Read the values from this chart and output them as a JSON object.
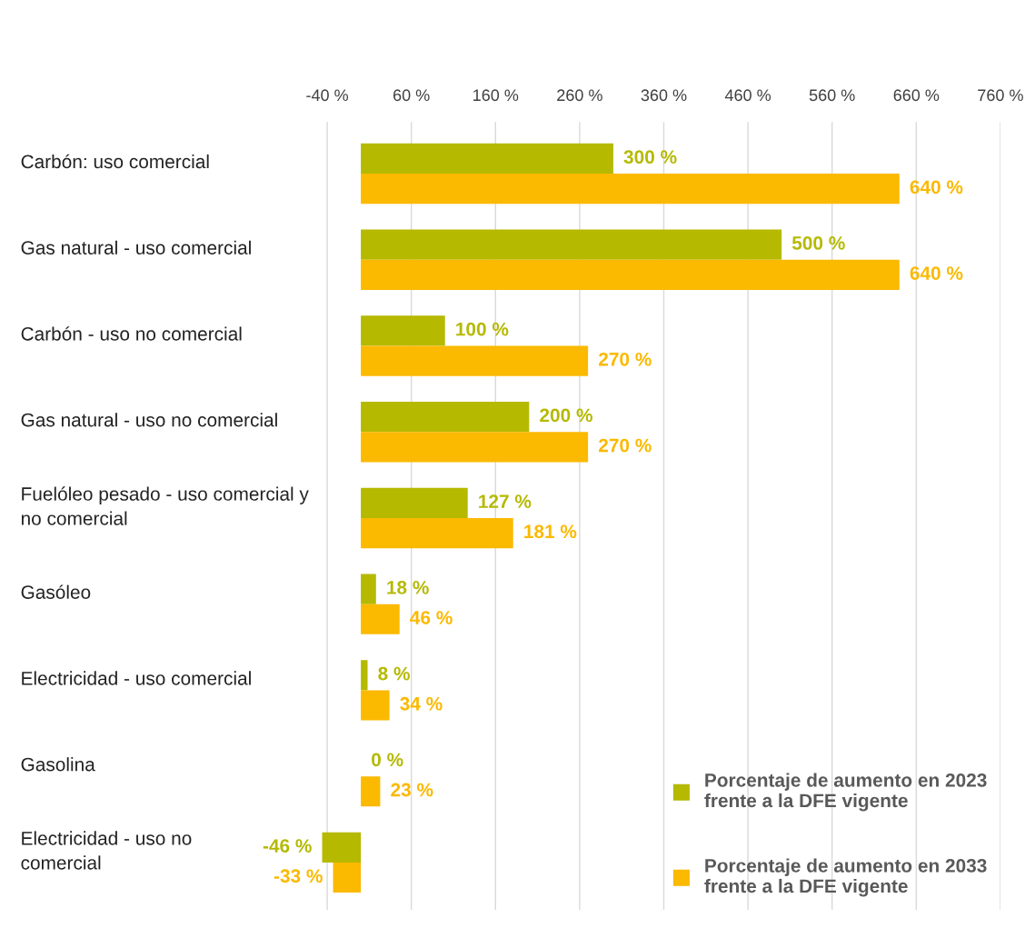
{
  "chart_data": {
    "type": "bar",
    "orientation": "horizontal",
    "categories": [
      "Carbón: uso comercial",
      "Gas natural - uso comercial",
      "Carbón - uso no comercial",
      "Gas natural - uso no comercial",
      "Fuelóleo pesado - uso comercial y\nno comercial",
      "Gasóleo",
      "Electricidad - uso comercial",
      "Gasolina",
      "Electricidad - uso no\ncomercial"
    ],
    "series": [
      {
        "name": "Porcentaje de aumento en 2023\nfrente a la DFE vigente",
        "color": "#b5b900",
        "values": [
          300,
          500,
          100,
          200,
          127,
          18,
          8,
          0,
          -46
        ],
        "value_labels": [
          "300 %",
          "500 %",
          "100 %",
          "200 %",
          "127 %",
          "18 %",
          "8 %",
          "0 %",
          "-46 %"
        ]
      },
      {
        "name": "Porcentaje de aumento en 2033\nfrente a la DFE vigente",
        "color": "#fbb900",
        "values": [
          640,
          640,
          270,
          270,
          181,
          46,
          34,
          23,
          -33
        ],
        "value_labels": [
          "640 %",
          "640 %",
          "270 %",
          "270 %",
          "181 %",
          "46 %",
          "34 %",
          "23 %",
          "-33 %"
        ]
      }
    ],
    "xlim": [
      -50,
      760
    ],
    "xticks": [
      {
        "value": -40,
        "label": "-40 %"
      },
      {
        "value": 60,
        "label": "60 %"
      },
      {
        "value": 160,
        "label": "160 %"
      },
      {
        "value": 260,
        "label": "260 %"
      },
      {
        "value": 360,
        "label": "360 %"
      },
      {
        "value": 460,
        "label": "460 %"
      },
      {
        "value": 560,
        "label": "560 %"
      },
      {
        "value": 660,
        "label": "660 %"
      },
      {
        "value": 760,
        "label": "760 %"
      }
    ],
    "grid": "x",
    "legend": "bottom right"
  }
}
